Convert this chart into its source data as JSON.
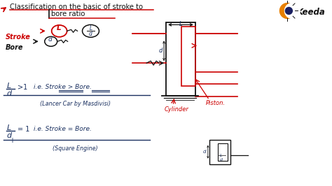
{
  "bg_color": "#ffffff",
  "title_line1": "Classification on the basic of stroke to",
  "title_line2": "bore ratio",
  "red": "#cc0000",
  "dark": "#1a3060",
  "black": "#111111",
  "keeda_text": "Keeda",
  "keeda_orange": "#e88000"
}
